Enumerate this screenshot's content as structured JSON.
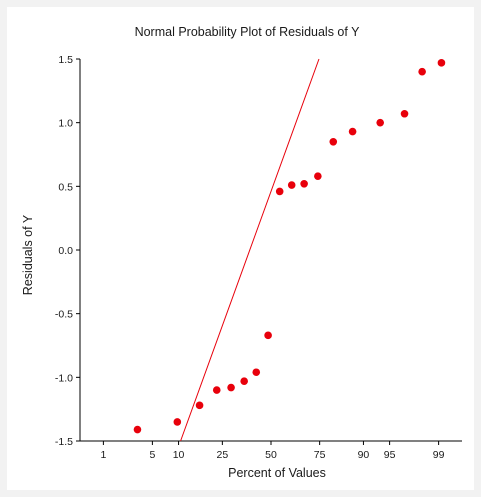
{
  "chart_data": {
    "type": "scatter",
    "title": "Normal Probability Plot of Residuals of Y",
    "xlabel": "Percent of Values",
    "ylabel": "Residuals of Y",
    "x_scale": "normal-probability",
    "xlim": [
      0.4,
      99.6
    ],
    "ylim": [
      -1.5,
      1.5
    ],
    "x_ticks": [
      1,
      5,
      10,
      25,
      50,
      75,
      90,
      95,
      99
    ],
    "y_ticks": [
      "1.5",
      "1.0",
      "0.5",
      "0.0",
      "-0.5",
      "-1.0",
      "-1.5"
    ],
    "grid": false,
    "legend": "none",
    "point_color": "#e8000b",
    "line_color": "#e8000b",
    "points": [
      {
        "x": 3.2,
        "y": -1.41
      },
      {
        "x": 9.7,
        "y": -1.35
      },
      {
        "x": 16.1,
        "y": -1.22
      },
      {
        "x": 22.6,
        "y": -1.1
      },
      {
        "x": 29.0,
        "y": -1.08
      },
      {
        "x": 35.5,
        "y": -1.03
      },
      {
        "x": 41.9,
        "y": -0.96
      },
      {
        "x": 48.4,
        "y": -0.67
      },
      {
        "x": 54.8,
        "y": 0.46
      },
      {
        "x": 61.3,
        "y": 0.51
      },
      {
        "x": 67.7,
        "y": 0.52
      },
      {
        "x": 74.2,
        "y": 0.58
      },
      {
        "x": 80.6,
        "y": 0.85
      },
      {
        "x": 87.1,
        "y": 0.93
      },
      {
        "x": 93.5,
        "y": 1.0
      },
      {
        "x": 96.8,
        "y": 1.07
      },
      {
        "x": 98.2,
        "y": 1.4
      },
      {
        "x": 99.1,
        "y": 1.47
      }
    ],
    "reference_line": [
      {
        "x": 10.5,
        "y": -1.5
      },
      {
        "x": 74.7,
        "y": 1.5
      }
    ]
  }
}
